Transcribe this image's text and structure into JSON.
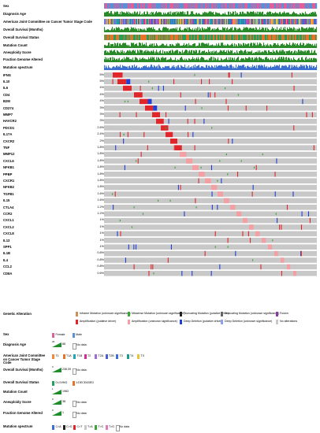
{
  "clinical_tracks": [
    {
      "label": "Sex",
      "kind": "categorical",
      "colors": [
        "#e05f9a",
        "#5b8fd6"
      ]
    },
    {
      "label": "Diagnosis Age",
      "kind": "histogram",
      "color": "#2a8a2a"
    },
    {
      "label": "American Joint Committee on Cancer Tumor Stage Code",
      "kind": "categorical",
      "colors": [
        "#f08a3c",
        "#1fa7b2",
        "#4a5fd0",
        "#d0308f",
        "#9a6fd6",
        "#3b6fd6",
        "#1c9c8c",
        "#e8c23a"
      ]
    },
    {
      "label": "Overall Survival (Months)",
      "kind": "histogram",
      "color": "#2a8a2a"
    },
    {
      "label": "Overall Survival Status",
      "kind": "categorical",
      "colors": [
        "#e4752a",
        "#24a05a"
      ]
    },
    {
      "label": "Mutation Count",
      "kind": "histogram",
      "color": "#2a8a2a"
    },
    {
      "label": "Aneuploidy Score",
      "kind": "histogram",
      "color": "#2a8a2a"
    },
    {
      "label": "Fraction Genome Altered",
      "kind": "histogram",
      "color": "#2a8a2a"
    },
    {
      "label": "Mutation spectrum",
      "kind": "histogram",
      "color": "#3a6fd0"
    }
  ],
  "genes": [
    {
      "name": "IFNG",
      "pct": "5%"
    },
    {
      "name": "IL10",
      "pct": "5%"
    },
    {
      "name": "IL6",
      "pct": "4%"
    },
    {
      "name": "CD4",
      "pct": "4%"
    },
    {
      "name": "B2M",
      "pct": "4%"
    },
    {
      "name": "CD274",
      "pct": "3%"
    },
    {
      "name": "MMP7",
      "pct": "3%"
    },
    {
      "name": "HAVCR2",
      "pct": "3%"
    },
    {
      "name": "PDCD1",
      "pct": "2.6%"
    },
    {
      "name": "IL17A",
      "pct": "2.4%"
    },
    {
      "name": "CXCR2",
      "pct": "2%"
    },
    {
      "name": "TNF",
      "pct": "1.8%"
    },
    {
      "name": "MMP12",
      "pct": "1.8%"
    },
    {
      "name": "CXCL6",
      "pct": "1.8%"
    },
    {
      "name": "NFKB1",
      "pct": "1.8%"
    },
    {
      "name": "PPBP",
      "pct": "1.8%"
    },
    {
      "name": "CXCR1",
      "pct": "1.8%"
    },
    {
      "name": "NFKB2",
      "pct": "1.8%"
    },
    {
      "name": "TGFB1",
      "pct": "1.6%"
    },
    {
      "name": "IL15",
      "pct": "1.6%"
    },
    {
      "name": "CTLA4",
      "pct": "1.2%"
    },
    {
      "name": "CCR2",
      "pct": "1.2%"
    },
    {
      "name": "CXCL1",
      "pct": "1%"
    },
    {
      "name": "CXCL2",
      "pct": "1%"
    },
    {
      "name": "CXCL8",
      "pct": "1%"
    },
    {
      "name": "IL13",
      "pct": "1%"
    },
    {
      "name": "SPP1",
      "pct": "1%"
    },
    {
      "name": "IL1B",
      "pct": "0.8%"
    },
    {
      "name": "IL4",
      "pct": "0.8%"
    },
    {
      "name": "CCL2",
      "pct": "0.8%"
    },
    {
      "name": "CD8A",
      "pct": "0.6%"
    }
  ],
  "genetic_legend": {
    "title": "Genetic Alteration",
    "items": [
      {
        "label": "Inframe Mutation (unknown significance)",
        "color": "#c8915a"
      },
      {
        "label": "Missense Mutation (unknown significance)",
        "color": "#3aa63a"
      },
      {
        "label": "Truncating Mutation (putative driver)",
        "color": "#222222"
      },
      {
        "label": "Truncating Mutation (unknown significance)",
        "color": "#666666"
      },
      {
        "label": "Fusion",
        "color": "#8a3aa6"
      },
      {
        "label": "Amplification (putative driver)",
        "color": "#e0262b"
      },
      {
        "label": "Amplification (unknown significance)",
        "color": "#f2a0a3"
      },
      {
        "label": "Deep Deletion (putative driver)",
        "color": "#1f3fd6"
      },
      {
        "label": "Deep Deletion (unknown significance)",
        "color": "#8ea0f0"
      },
      {
        "label": "No alterations",
        "color": "#c8c8c8"
      }
    ]
  },
  "clinical_legends": [
    {
      "title": "Sex",
      "items": [
        {
          "label": "Female",
          "color": "#e05f9a"
        },
        {
          "label": "Male",
          "color": "#5b8fd6"
        }
      ]
    },
    {
      "title": "Diagnosis Age",
      "range": [
        "26",
        "88"
      ],
      "nodata": "No data"
    },
    {
      "title": "American Joint Committee on Cancer Tumor Stage Code",
      "items": [
        {
          "label": "T1",
          "color": "#f08a3c"
        },
        {
          "label": "T1A",
          "color": "#e4752a"
        },
        {
          "label": "T1B",
          "color": "#1fa7b2"
        },
        {
          "label": "T2",
          "color": "#d0308f"
        },
        {
          "label": "T2A",
          "color": "#9a6fd6"
        },
        {
          "label": "T2B",
          "color": "#4a5fd0"
        },
        {
          "label": "T3",
          "color": "#3b6fd6"
        },
        {
          "label": "T4",
          "color": "#1c9c8c"
        },
        {
          "label": "TX",
          "color": "#e8c23a"
        }
      ]
    },
    {
      "title": "Overall Survival (Months)",
      "range": [
        "0",
        "236.09"
      ],
      "nodata": "No data"
    },
    {
      "title": "Overall Survival Status",
      "items": [
        {
          "label": "0:LIVING",
          "color": "#24a05a"
        },
        {
          "label": "1:DECEASED",
          "color": "#e4752a"
        }
      ]
    },
    {
      "title": "Mutation Count",
      "range": [
        "1",
        "1983"
      ]
    },
    {
      "title": "Aneuploidy Score",
      "range": [
        "0",
        "38"
      ],
      "nodata": "No data"
    },
    {
      "title": "Fraction Genome Altered",
      "range": [
        "0",
        "1"
      ],
      "nodata": "No data"
    },
    {
      "title": "Mutation spectrum",
      "items": [
        {
          "label": "C>A",
          "color": "#3a6fd0"
        },
        {
          "label": "C>G",
          "color": "#222222"
        },
        {
          "label": "C>T",
          "color": "#e0262b"
        },
        {
          "label": "T>A",
          "color": "#c8c8c8"
        },
        {
          "label": "T>C",
          "color": "#3aa63a"
        },
        {
          "label": "T>G",
          "color": "#e07ab8"
        },
        {
          "label": "No data",
          "color": "#ffffff"
        }
      ]
    }
  ]
}
